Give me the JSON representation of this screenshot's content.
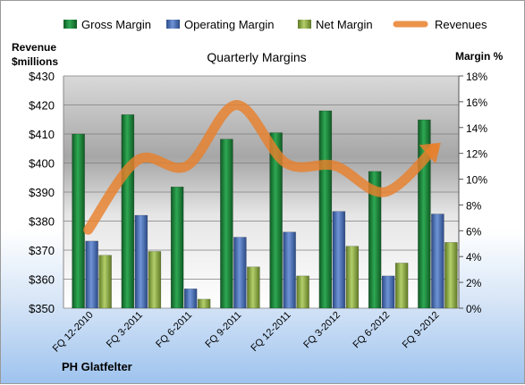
{
  "chart_data": {
    "type": "bar",
    "title": "Quarterly Margins",
    "left_axis_label_line1": "Revenue",
    "left_axis_label_line2": "$millions",
    "right_axis_label": "Margin %",
    "company": "PH Glatfelter",
    "categories": [
      "FQ 12-2010",
      "FQ 3-2011",
      "FQ 6-2011",
      "FQ 9-2011",
      "FQ 12-2011",
      "FQ 3-2012",
      "FQ 6-2012",
      "FQ 9-2012"
    ],
    "series": [
      {
        "name": "Gross Margin",
        "axis": "right",
        "kind": "bar",
        "color": "#1f8a3c",
        "values": [
          13.5,
          15.0,
          9.4,
          13.1,
          13.6,
          15.3,
          10.6,
          14.6
        ]
      },
      {
        "name": "Operating Margin",
        "axis": "right",
        "kind": "bar",
        "color": "#4a6fb5",
        "values": [
          5.2,
          7.2,
          1.5,
          5.5,
          5.9,
          7.5,
          2.5,
          7.3
        ]
      },
      {
        "name": "Net Margin",
        "axis": "right",
        "kind": "bar",
        "color": "#93b04a",
        "values": [
          4.1,
          4.4,
          0.7,
          3.2,
          2.5,
          4.8,
          3.5,
          5.1
        ]
      },
      {
        "name": "Revenues",
        "axis": "left",
        "kind": "line",
        "color": "#e8802c",
        "values": [
          377,
          401,
          399,
          420,
          400,
          399,
          390,
          405
        ]
      }
    ],
    "y_left": {
      "min": 350,
      "max": 430,
      "ticks": [
        "$350",
        "$360",
        "$370",
        "$380",
        "$390",
        "$400",
        "$410",
        "$420",
        "$430"
      ]
    },
    "y_right": {
      "min": 0,
      "max": 18,
      "ticks": [
        "0%",
        "2%",
        "4%",
        "6%",
        "8%",
        "10%",
        "12%",
        "14%",
        "16%",
        "18%"
      ]
    },
    "legend_position": "top",
    "grid": true
  }
}
